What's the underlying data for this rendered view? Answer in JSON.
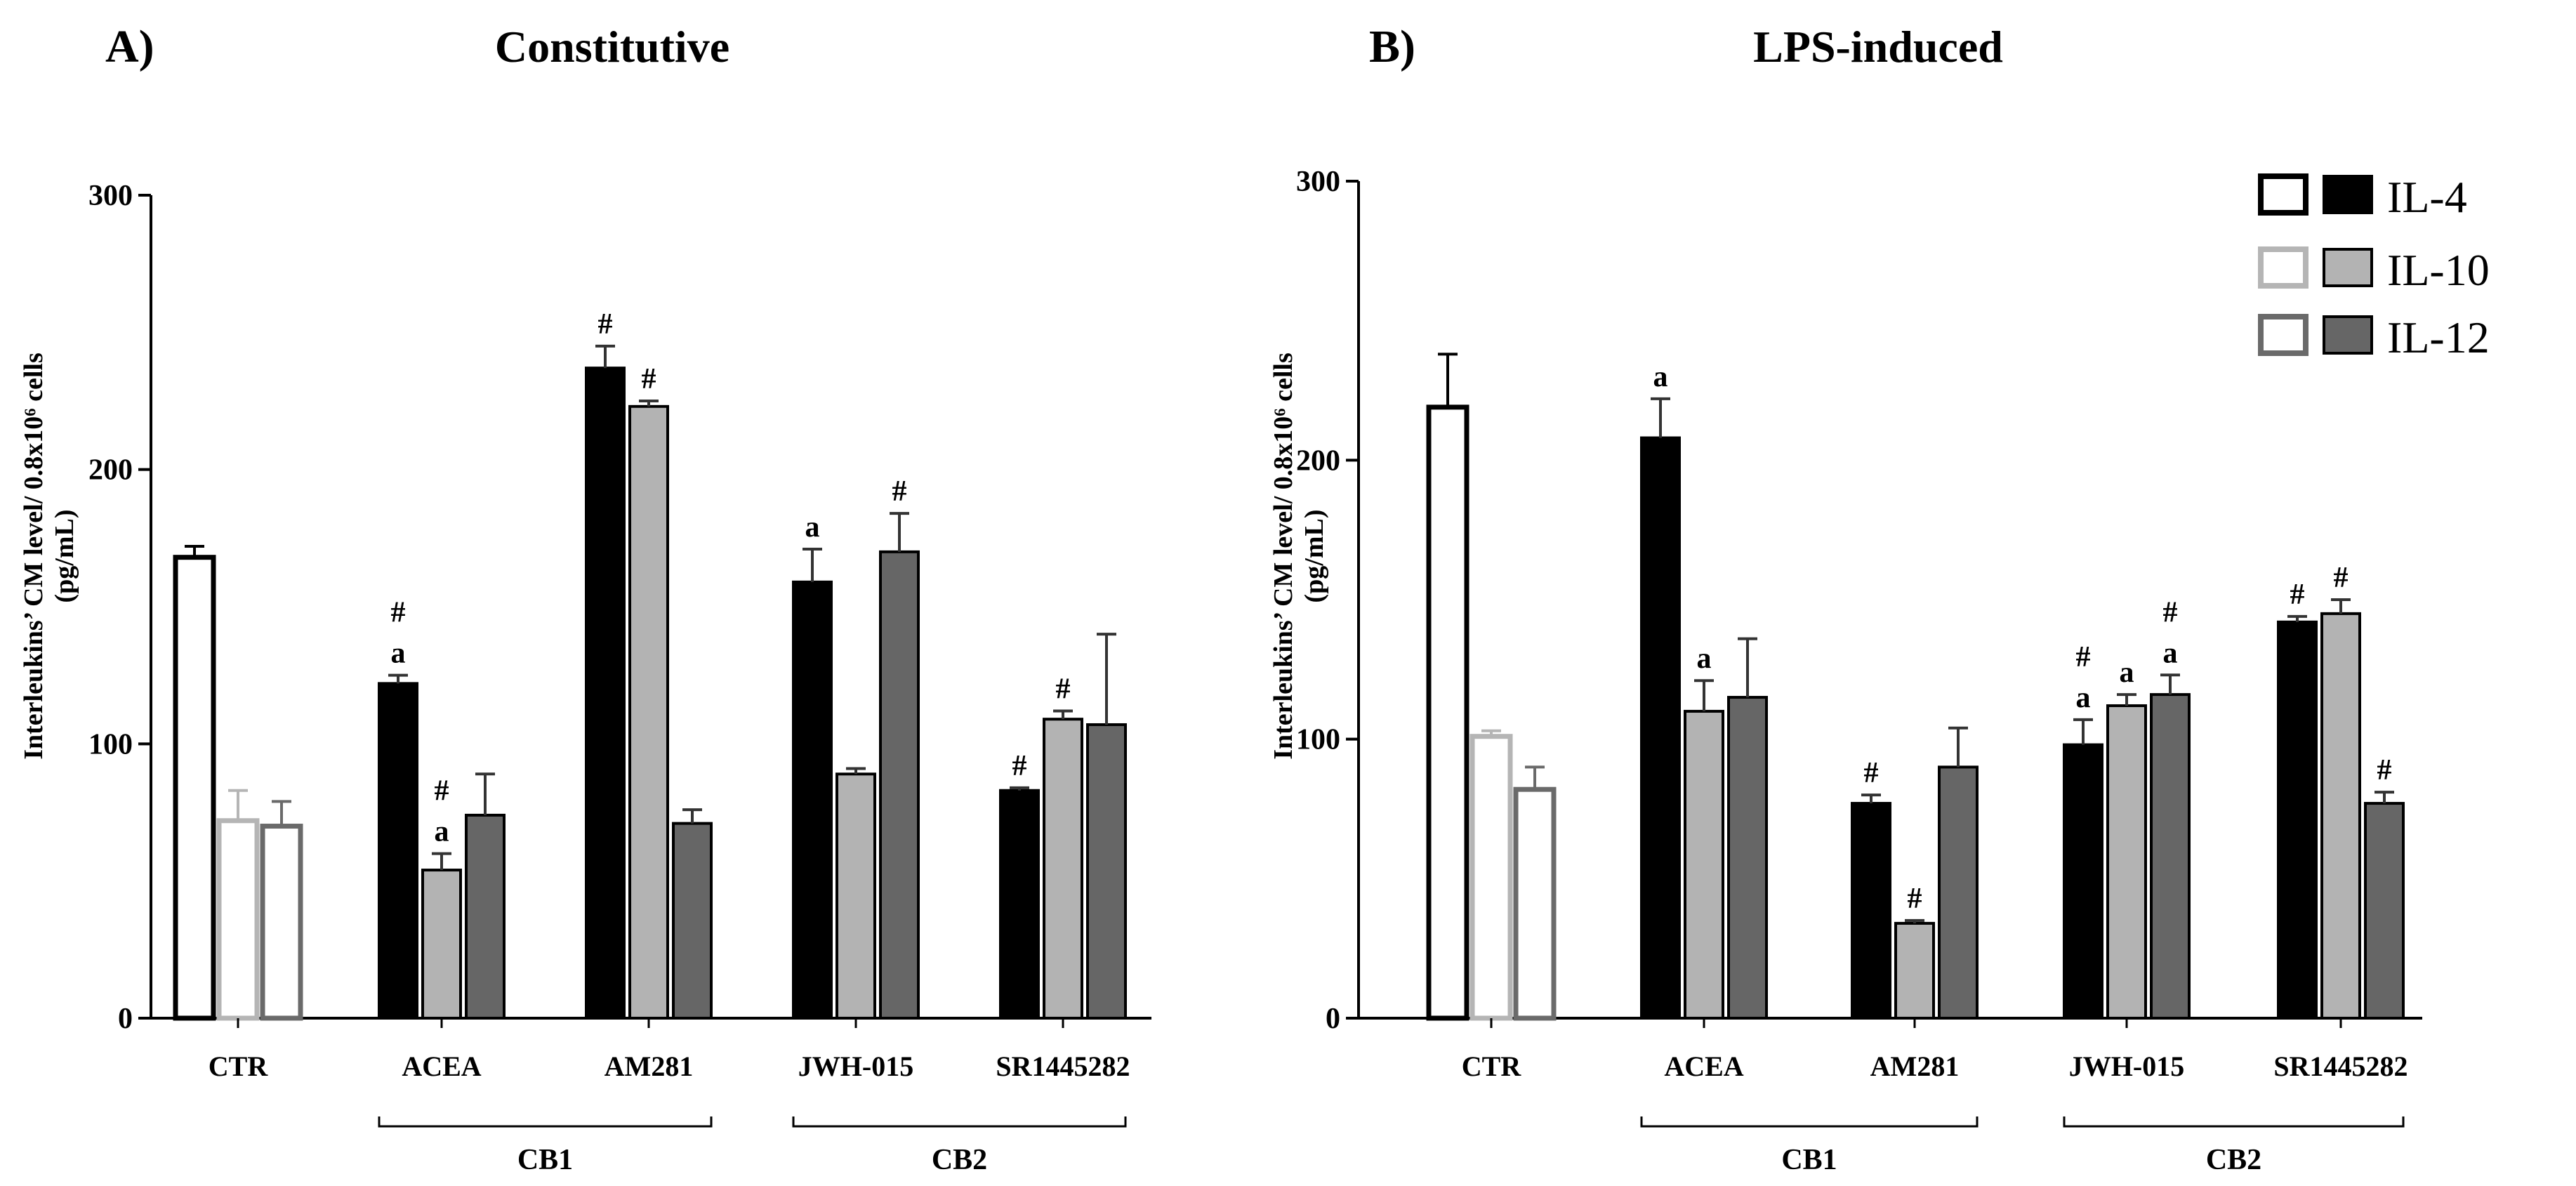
{
  "legend": {
    "items": [
      {
        "label": "IL-4",
        "control_fill": "#ffffff",
        "control_stroke": "#000000",
        "fill": "#000000"
      },
      {
        "label": "IL-10",
        "control_fill": "#ffffff",
        "control_stroke": "#b5b5b5",
        "fill": "#b3b3b3"
      },
      {
        "label": "IL-12",
        "control_fill": "#ffffff",
        "control_stroke": "#6a6a6a",
        "fill": "#666666"
      }
    ]
  },
  "chart_data": [
    {
      "type": "bar",
      "panel_label": "A)",
      "title": "Constitutive",
      "ylabel_line1": "Interleukins’ CM level/ 0.8x10⁶ cells",
      "ylabel_line2": "(pg/mL)",
      "ylim": [
        0,
        300
      ],
      "yticks": [
        "0",
        "100",
        "200",
        "300"
      ],
      "categories": [
        "CTR",
        "ACEA",
        "AM281",
        "JWH-015",
        "SR1445282"
      ],
      "groups": [
        {
          "label": "CB1",
          "categories": [
            "ACEA",
            "AM281"
          ]
        },
        {
          "label": "CB2",
          "categories": [
            "JWH-015",
            "SR1445282"
          ]
        }
      ],
      "series": [
        {
          "name": "IL-4",
          "values": [
            168,
            122,
            237,
            159,
            83
          ],
          "errors": [
            4,
            3,
            8,
            12,
            1
          ],
          "annotations": [
            "",
            "a,#",
            "#",
            "a",
            "#"
          ]
        },
        {
          "name": "IL-10",
          "values": [
            72,
            54,
            223,
            89,
            109
          ],
          "errors": [
            11,
            6,
            2,
            2,
            3
          ],
          "annotations": [
            "",
            "a,#",
            "#",
            "",
            "#"
          ]
        },
        {
          "name": "IL-12",
          "values": [
            70,
            74,
            71,
            170,
            107
          ],
          "errors": [
            9,
            15,
            5,
            14,
            33
          ],
          "annotations": [
            "",
            "",
            "",
            "#",
            ""
          ]
        }
      ]
    },
    {
      "type": "bar",
      "panel_label": "B)",
      "title": "LPS-induced",
      "ylabel_line1": "Interleukins’ CM level/ 0.8x10⁶ cells",
      "ylabel_line2": "(pg/mL)",
      "ylim": [
        0,
        300
      ],
      "yticks": [
        "0",
        "100",
        "200",
        "300"
      ],
      "categories": [
        "CTR",
        "ACEA",
        "AM281",
        "JWH-015",
        "SR1445282"
      ],
      "groups": [
        {
          "label": "CB1",
          "categories": [
            "ACEA",
            "AM281"
          ]
        },
        {
          "label": "CB2",
          "categories": [
            "JWH-015",
            "SR1445282"
          ]
        }
      ],
      "series": [
        {
          "name": "IL-4",
          "values": [
            219,
            208,
            77,
            98,
            142
          ],
          "errors": [
            19,
            14,
            3,
            9,
            2
          ],
          "annotations": [
            "",
            "a",
            "#",
            "a,#",
            "#"
          ]
        },
        {
          "name": "IL-10",
          "values": [
            101,
            110,
            34,
            112,
            145
          ],
          "errors": [
            2,
            11,
            1,
            4,
            5
          ],
          "annotations": [
            "",
            "a",
            "#",
            "a",
            "#"
          ]
        },
        {
          "name": "IL-12",
          "values": [
            82,
            115,
            90,
            116,
            77
          ],
          "errors": [
            8,
            21,
            14,
            7,
            4
          ],
          "annotations": [
            "",
            "",
            "",
            "a,#",
            "#"
          ]
        }
      ]
    }
  ]
}
